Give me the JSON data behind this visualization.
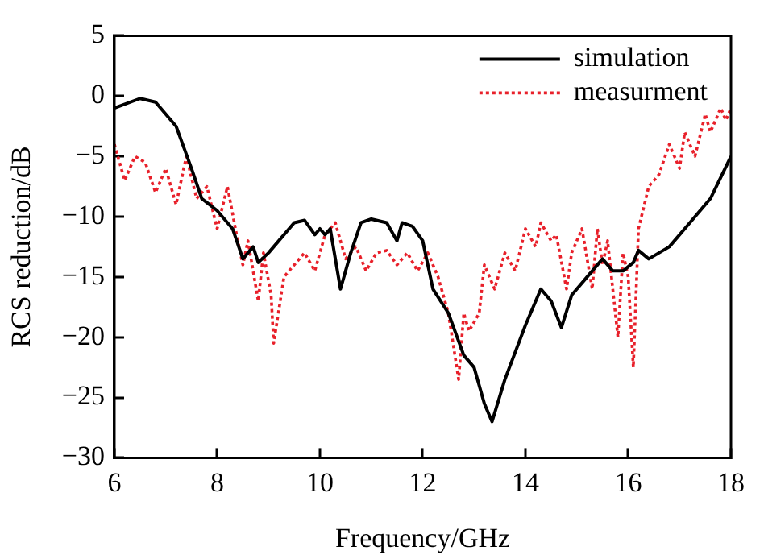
{
  "chart_data": {
    "type": "line",
    "xlabel": "Frequency/GHz",
    "ylabel": "RCS reduction/dB",
    "xlim": [
      6,
      18
    ],
    "xticks": [
      6,
      8,
      10,
      12,
      14,
      16,
      18
    ],
    "ylim": [
      -30,
      5
    ],
    "yticks": [
      {
        "value": -30,
        "label": "−30"
      },
      {
        "value": -25,
        "label": "−25"
      },
      {
        "value": -20,
        "label": "−20"
      },
      {
        "value": -15,
        "label": "−15"
      },
      {
        "value": -10,
        "label": "−10"
      },
      {
        "value": -5,
        "label": "−5"
      },
      0,
      5
    ],
    "grid": false,
    "legend": "top right",
    "series": [
      {
        "name": "simulation",
        "color": "#000000",
        "line_style": "solid",
        "x": [
          6,
          6.5,
          6.8,
          7.2,
          7.5,
          7.7,
          8,
          8.3,
          8.5,
          8.7,
          8.8,
          9,
          9.2,
          9.5,
          9.7,
          9.9,
          10,
          10.1,
          10.2,
          10.4,
          10.6,
          10.8,
          11,
          11.3,
          11.5,
          11.6,
          11.8,
          12,
          12.2,
          12.5,
          12.8,
          13,
          13.2,
          13.35,
          13.6,
          14,
          14.3,
          14.5,
          14.7,
          14.9,
          15.2,
          15.5,
          15.7,
          15.9,
          16.1,
          16.2,
          16.4,
          16.8,
          17.2,
          17.6,
          18
        ],
        "values": [
          -1,
          -0.2,
          -0.5,
          -2.5,
          -6,
          -8.5,
          -9.5,
          -11,
          -13.5,
          -12.5,
          -13.8,
          -13,
          -12,
          -10.5,
          -10.3,
          -11.5,
          -11,
          -11.5,
          -11,
          -16,
          -13,
          -10.5,
          -10.2,
          -10.5,
          -12,
          -10.5,
          -10.8,
          -12,
          -16,
          -18,
          -21.5,
          -22.5,
          -25.5,
          -27,
          -23.5,
          -19,
          -16,
          -17,
          -19.2,
          -16.5,
          -15,
          -13.5,
          -14.5,
          -14.5,
          -13.8,
          -12.8,
          -13.5,
          -12.5,
          -10.5,
          -8.5,
          -5
        ]
      },
      {
        "name": "measurment",
        "color": "#e8202a",
        "line_style": "dotted",
        "x": [
          6,
          6.2,
          6.4,
          6.6,
          6.8,
          7,
          7.2,
          7.4,
          7.6,
          7.8,
          8,
          8.2,
          8.4,
          8.5,
          8.6,
          8.8,
          8.9,
          9.05,
          9.1,
          9.3,
          9.5,
          9.7,
          9.9,
          10.1,
          10.3,
          10.5,
          10.7,
          10.9,
          11.1,
          11.3,
          11.5,
          11.7,
          11.9,
          12.1,
          12.3,
          12.5,
          12.7,
          12.8,
          12.9,
          13.1,
          13.2,
          13.4,
          13.6,
          13.8,
          14,
          14.2,
          14.3,
          14.5,
          14.6,
          14.8,
          14.9,
          15.1,
          15.3,
          15.4,
          15.5,
          15.6,
          15.8,
          15.9,
          16,
          16.1,
          16.2,
          16.4,
          16.6,
          16.8,
          17,
          17.1,
          17.3,
          17.5,
          17.6,
          17.8,
          17.9,
          18
        ],
        "values": [
          -4,
          -7,
          -5,
          -5.5,
          -8,
          -6,
          -9,
          -5,
          -8.5,
          -7.5,
          -11,
          -7.5,
          -12,
          -14,
          -12,
          -17,
          -13,
          -16.5,
          -20.5,
          -15,
          -14,
          -13,
          -14.5,
          -11.5,
          -10.5,
          -13.5,
          -12.5,
          -14.5,
          -13,
          -12.8,
          -14,
          -13,
          -14.5,
          -13,
          -15,
          -18,
          -23.5,
          -18,
          -19.5,
          -18,
          -14,
          -16,
          -13,
          -14.5,
          -11,
          -12.5,
          -10.5,
          -12,
          -11.5,
          -16,
          -13,
          -11,
          -16,
          -11,
          -14,
          -12,
          -20,
          -13,
          -15,
          -22.5,
          -11,
          -7.5,
          -6.5,
          -4,
          -6,
          -3,
          -5,
          -1.5,
          -3,
          -1,
          -2,
          -1
        ]
      }
    ]
  }
}
